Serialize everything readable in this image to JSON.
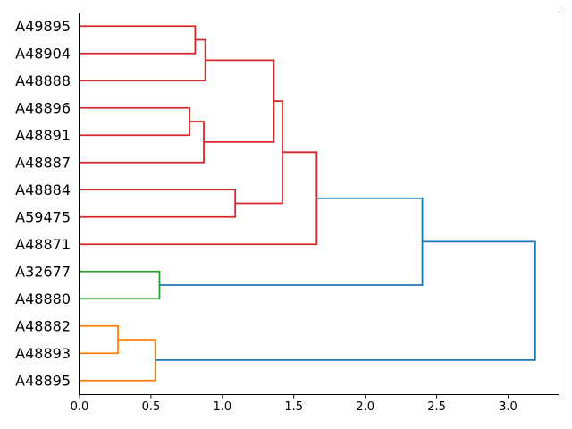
{
  "figure": {
    "background": "#ffffff",
    "title": ""
  },
  "chart_data": {
    "type": "dendrogram",
    "orientation": "right",
    "title": "",
    "xlabel": "",
    "ylabel": "",
    "grid": false,
    "legend": null,
    "leaves": [
      "A49895",
      "A48904",
      "A48888",
      "A48896",
      "A48891",
      "A48887",
      "A48884",
      "A59475",
      "A48871",
      "A32677",
      "A48880",
      "A48882",
      "A48893",
      "A48895"
    ],
    "links": [
      {
        "id": "m0",
        "children": [
          "A49895",
          "A48904"
        ],
        "distance": 0.81,
        "color_key": "red"
      },
      {
        "id": "m1",
        "children": [
          "m0",
          "A48888"
        ],
        "distance": 0.88,
        "color_key": "red"
      },
      {
        "id": "m2",
        "children": [
          "A48896",
          "A48891"
        ],
        "distance": 0.77,
        "color_key": "red"
      },
      {
        "id": "m3",
        "children": [
          "m2",
          "A48887"
        ],
        "distance": 0.87,
        "color_key": "red"
      },
      {
        "id": "m4",
        "children": [
          "m1",
          "m3"
        ],
        "distance": 1.36,
        "color_key": "red"
      },
      {
        "id": "m5",
        "children": [
          "A48884",
          "A59475"
        ],
        "distance": 1.09,
        "color_key": "red"
      },
      {
        "id": "m6",
        "children": [
          "m4",
          "m5"
        ],
        "distance": 1.42,
        "color_key": "red"
      },
      {
        "id": "m7",
        "children": [
          "m6",
          "A48871"
        ],
        "distance": 1.66,
        "color_key": "red"
      },
      {
        "id": "m8",
        "children": [
          "A32677",
          "A48880"
        ],
        "distance": 0.56,
        "color_key": "green"
      },
      {
        "id": "m9",
        "children": [
          "A48882",
          "A48893"
        ],
        "distance": 0.27,
        "color_key": "orange"
      },
      {
        "id": "m10",
        "children": [
          "m9",
          "A48895"
        ],
        "distance": 0.53,
        "color_key": "orange"
      },
      {
        "id": "m11",
        "children": [
          "m7",
          "m8"
        ],
        "distance": 2.4,
        "color_key": "blue"
      },
      {
        "id": "m12",
        "children": [
          "m11",
          "m10"
        ],
        "distance": 3.19,
        "color_key": "blue"
      }
    ],
    "colors": {
      "red": "#d62728",
      "green": "#2ca02c",
      "orange": "#ff7f0e",
      "blue": "#1f77b4"
    },
    "axis_color": "#000000",
    "x_axis": {
      "range": [
        0,
        3.36
      ],
      "ticks": [
        0.0,
        0.5,
        1.0,
        1.5,
        2.0,
        2.5,
        3.0
      ],
      "tick_labels": [
        "0.0",
        "0.5",
        "1.0",
        "1.5",
        "2.0",
        "2.5",
        "3.0"
      ]
    }
  }
}
